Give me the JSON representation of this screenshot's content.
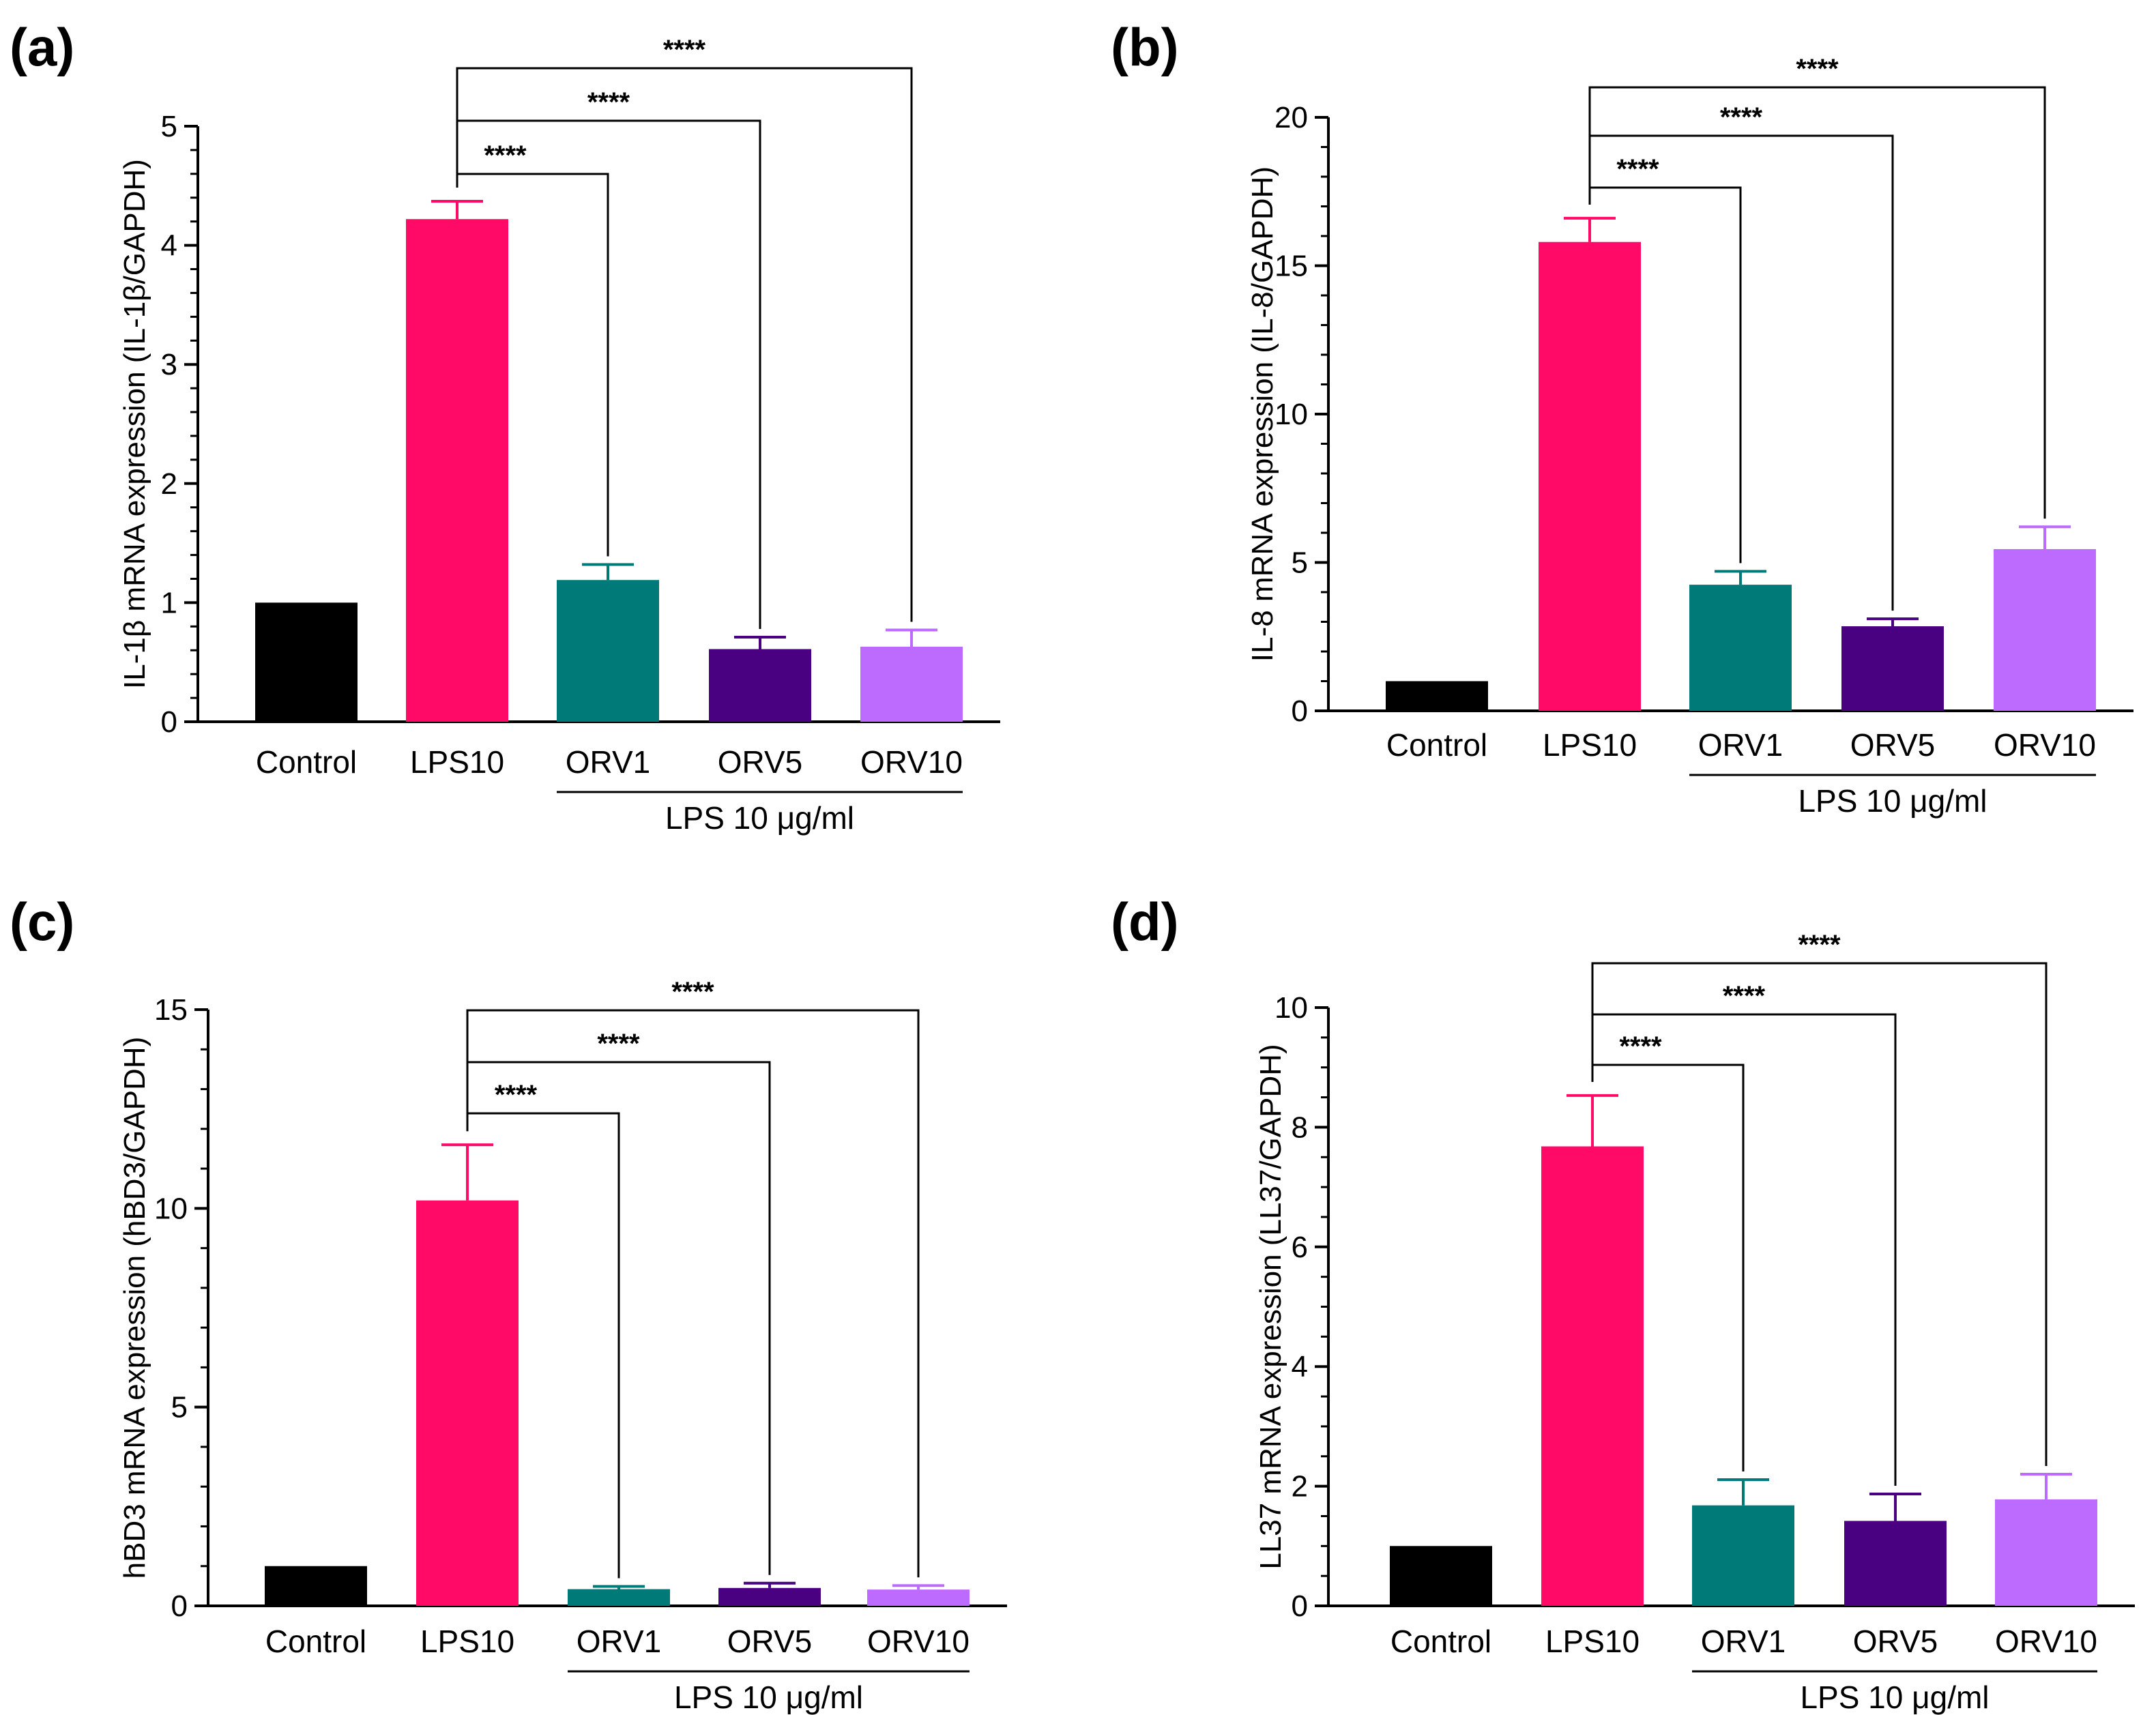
{
  "colors": {
    "Control": "#000000",
    "LPS10": "#ff0a67",
    "ORV1": "#007a78",
    "ORV5": "#490081",
    "ORV10": "#bd6bff"
  },
  "chart_data": [
    {
      "type": "bar",
      "panel": "(a)",
      "title": "",
      "xlabel": "",
      "ylabel": "IL-1β mRNA expression (IL-1β/GAPDH)",
      "ylim": [
        0,
        5
      ],
      "yticks": [
        0,
        1,
        2,
        3,
        4,
        5
      ],
      "categories": [
        "Control",
        "LPS10",
        "ORV1",
        "ORV5",
        "ORV10"
      ],
      "values": [
        1.0,
        4.22,
        1.19,
        0.61,
        0.63
      ],
      "errors": [
        0,
        0.15,
        0.13,
        0.1,
        0.14
      ],
      "group_label": "LPS 10 μg/ml",
      "significance": [
        {
          "from": "LPS10",
          "to": "ORV1",
          "label": "****"
        },
        {
          "from": "LPS10",
          "to": "ORV5",
          "label": "****"
        },
        {
          "from": "LPS10",
          "to": "ORV10",
          "label": "****"
        }
      ]
    },
    {
      "type": "bar",
      "panel": "(b)",
      "title": "",
      "xlabel": "",
      "ylabel": "IL-8 mRNA expression (IL-8/GAPDH)",
      "ylim": [
        0,
        20
      ],
      "yticks": [
        0,
        5,
        10,
        15,
        20
      ],
      "categories": [
        "Control",
        "LPS10",
        "ORV1",
        "ORV5",
        "ORV10"
      ],
      "values": [
        1.0,
        15.8,
        4.25,
        2.85,
        5.45
      ],
      "errors": [
        0,
        0.8,
        0.45,
        0.25,
        0.75
      ],
      "group_label": "LPS 10 μg/ml",
      "significance": [
        {
          "from": "LPS10",
          "to": "ORV1",
          "label": "****"
        },
        {
          "from": "LPS10",
          "to": "ORV5",
          "label": "****"
        },
        {
          "from": "LPS10",
          "to": "ORV10",
          "label": "****"
        }
      ]
    },
    {
      "type": "bar",
      "panel": "(c)",
      "title": "",
      "xlabel": "",
      "ylabel": "hBD3 mRNA expression (hBD3/GAPDH)",
      "ylim": [
        0,
        15
      ],
      "yticks": [
        0,
        5,
        10,
        15
      ],
      "categories": [
        "Control",
        "LPS10",
        "ORV1",
        "ORV5",
        "ORV10"
      ],
      "values": [
        1.0,
        10.2,
        0.42,
        0.45,
        0.41
      ],
      "errors": [
        0,
        1.4,
        0.07,
        0.12,
        0.1
      ],
      "group_label": "LPS 10 μg/ml",
      "significance": [
        {
          "from": "LPS10",
          "to": "ORV1",
          "label": "****"
        },
        {
          "from": "LPS10",
          "to": "ORV5",
          "label": "****"
        },
        {
          "from": "LPS10",
          "to": "ORV10",
          "label": "****"
        }
      ]
    },
    {
      "type": "bar",
      "panel": "(d)",
      "title": "",
      "xlabel": "",
      "ylabel": "LL37 mRNA expression (LL37/GAPDH)",
      "ylim": [
        0,
        10
      ],
      "yticks": [
        0,
        2,
        4,
        6,
        8,
        10
      ],
      "categories": [
        "Control",
        "LPS10",
        "ORV1",
        "ORV5",
        "ORV10"
      ],
      "values": [
        1.0,
        7.68,
        1.68,
        1.42,
        1.78
      ],
      "errors": [
        0,
        0.85,
        0.43,
        0.45,
        0.42
      ],
      "group_label": "LPS 10 μg/ml",
      "significance": [
        {
          "from": "LPS10",
          "to": "ORV1",
          "label": "****"
        },
        {
          "from": "LPS10",
          "to": "ORV5",
          "label": "****"
        },
        {
          "from": "LPS10",
          "to": "ORV10",
          "label": "****"
        }
      ]
    }
  ]
}
